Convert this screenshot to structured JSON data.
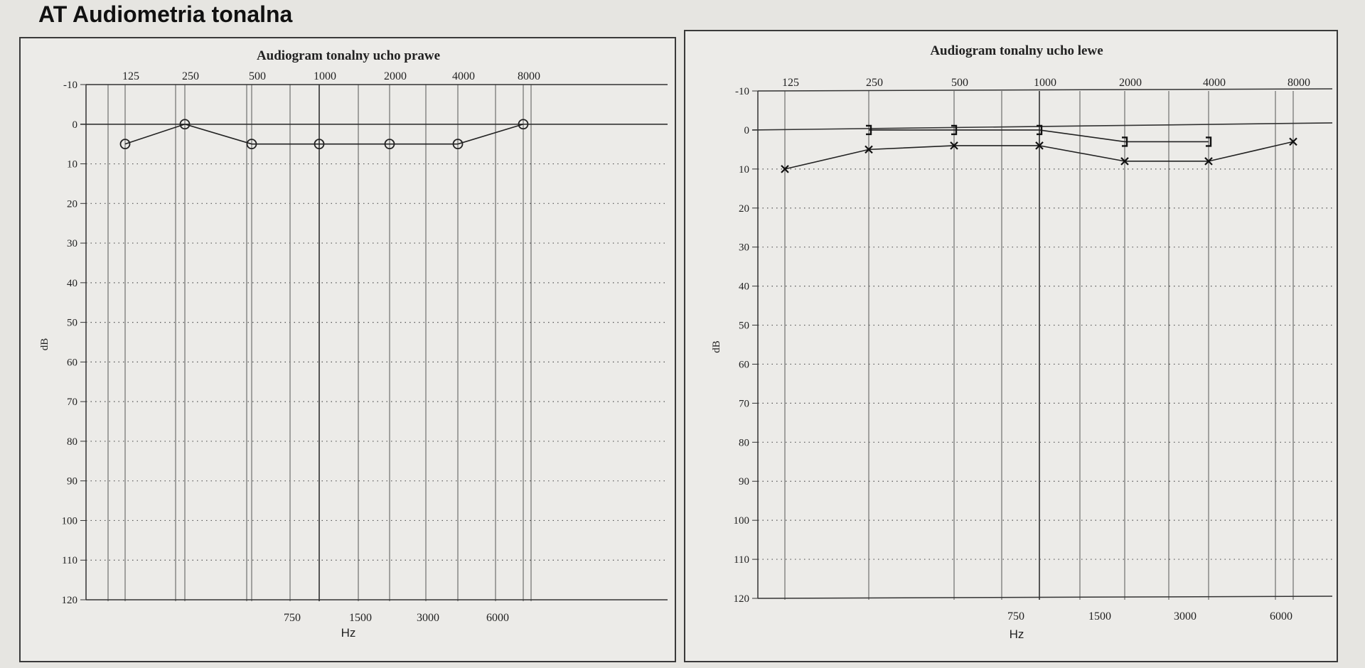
{
  "page_title": "AT Audiometria tonalna",
  "chart_data": [
    {
      "type": "line",
      "title": "Audiogram tonalny ucho prawe",
      "xlabel": "Hz",
      "ylabel": "dB",
      "x_top_ticks": [
        "125",
        "250",
        "500",
        "1000",
        "2000",
        "4000",
        "8000"
      ],
      "x_bottom_ticks": [
        "750",
        "1500",
        "3000",
        "6000"
      ],
      "y_ticks": [
        "-10",
        "0",
        "10",
        "20",
        "30",
        "40",
        "50",
        "60",
        "70",
        "80",
        "90",
        "100",
        "110",
        "120"
      ],
      "ylim": [
        -10,
        120
      ],
      "y_inverted": true,
      "reference_line": 0,
      "grid": "dotted-horizontal, solid-vertical",
      "series": [
        {
          "marker": "circle",
          "x": [
            "125",
            "250",
            "500",
            "1000",
            "2000",
            "4000",
            "8000"
          ],
          "values": [
            5,
            0,
            5,
            5,
            5,
            5,
            0
          ]
        }
      ]
    },
    {
      "type": "line",
      "title": "Audiogram tonalny ucho lewe",
      "xlabel": "Hz",
      "ylabel": "dB",
      "x_top_ticks": [
        "125",
        "250",
        "500",
        "1000",
        "2000",
        "4000",
        "8000"
      ],
      "x_bottom_ticks": [
        "750",
        "1500",
        "3000",
        "6000"
      ],
      "y_ticks": [
        "-10",
        "0",
        "10",
        "20",
        "30",
        "40",
        "50",
        "60",
        "70",
        "80",
        "90",
        "100",
        "110",
        "120"
      ],
      "ylim": [
        -10,
        120
      ],
      "y_inverted": true,
      "reference_line": 0,
      "grid": "dotted-horizontal, solid-vertical",
      "series": [
        {
          "marker": "bracket",
          "x": [
            "250",
            "500",
            "1000",
            "2000",
            "4000"
          ],
          "values": [
            0,
            0,
            0,
            3,
            3
          ]
        },
        {
          "marker": "x",
          "x": [
            "125",
            "250",
            "500",
            "1000",
            "2000",
            "4000",
            "8000"
          ],
          "values": [
            10,
            5,
            4,
            4,
            8,
            8,
            3
          ]
        }
      ]
    }
  ]
}
